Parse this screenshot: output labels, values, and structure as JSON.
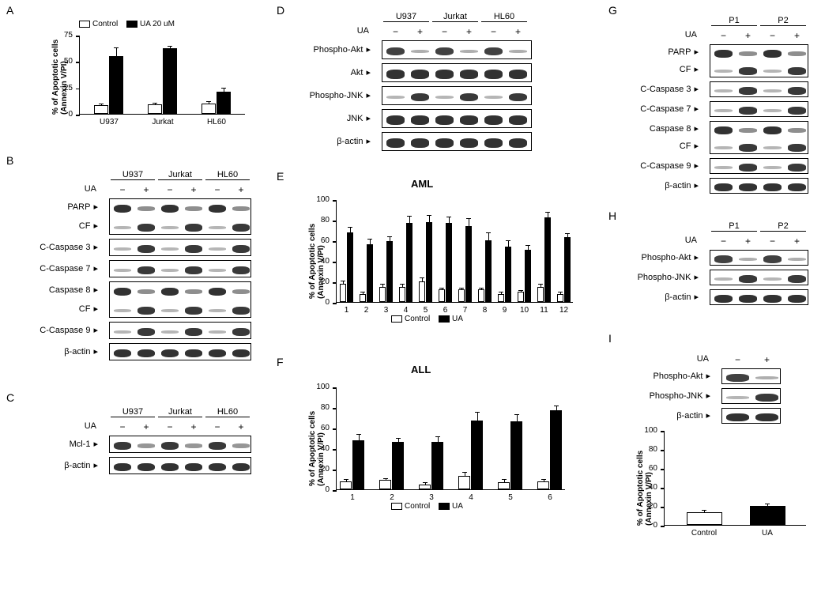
{
  "panels": {
    "A": "A",
    "B": "B",
    "C": "C",
    "D": "D",
    "E": "E",
    "F": "F",
    "G": "G",
    "H": "H",
    "I": "I"
  },
  "chartA": {
    "type": "bar",
    "categories": [
      "U937",
      "Jurkat",
      "HL60"
    ],
    "control_values": [
      8,
      9,
      10
    ],
    "ua_values": [
      55,
      62,
      21
    ],
    "ua_errors": [
      7,
      2,
      3
    ],
    "control_errors": [
      1,
      1,
      1
    ],
    "ylabel_line1": "% of Apoptotic cells",
    "ylabel_line2": "(Annexin V/PI)",
    "ylim": [
      0,
      75
    ],
    "ytick_step": 25,
    "legend": {
      "control": "Control",
      "ua": "UA  20 uM"
    },
    "bar_colors": {
      "control": "#ffffff",
      "ua": "#000000"
    }
  },
  "blotB": {
    "treatment": "UA",
    "columns": [
      "U937",
      "Jurkat",
      "HL60"
    ],
    "conditions": [
      "−",
      "+",
      "−",
      "+",
      "−",
      "+"
    ],
    "rows": [
      "PARP",
      "CF",
      "C-Caspase 3",
      "C-Caspase 7",
      "Caspase 8",
      "CF",
      "C-Caspase 9",
      "β-actin"
    ]
  },
  "blotC": {
    "treatment": "UA",
    "columns": [
      "U937",
      "Jurkat",
      "HL60"
    ],
    "conditions": [
      "−",
      "+",
      "−",
      "+",
      "−",
      "+"
    ],
    "rows": [
      "Mcl-1",
      "β-actin"
    ]
  },
  "blotD": {
    "treatment": "UA",
    "columns": [
      "U937",
      "Jurkat",
      "HL60"
    ],
    "conditions": [
      "−",
      "+",
      "−",
      "+",
      "−",
      "+"
    ],
    "rows": [
      "Phospho-Akt",
      "Akt",
      "Phospho-JNK",
      "JNK",
      "β-actin"
    ]
  },
  "chartE": {
    "type": "bar",
    "title": "AML",
    "categories": [
      "1",
      "2",
      "3",
      "4",
      "5",
      "6",
      "7",
      "8",
      "9",
      "10",
      "11",
      "12"
    ],
    "control_values": [
      18,
      8,
      15,
      15,
      20,
      12,
      12,
      12,
      8,
      10,
      15,
      8
    ],
    "ua_values": [
      68,
      56,
      59,
      77,
      78,
      77,
      74,
      60,
      54,
      51,
      82,
      63
    ],
    "ua_errors": [
      4,
      5,
      4,
      6,
      6,
      5,
      7,
      7,
      5,
      4,
      5,
      3
    ],
    "control_errors": [
      2,
      1,
      2,
      2,
      3,
      1,
      1,
      1,
      1,
      1,
      2,
      1
    ],
    "ylabel_line1": "% of Apoptotic cells",
    "ylabel_line2": "(Annexin V/PI)",
    "ylim": [
      0,
      100
    ],
    "ytick_step": 20,
    "legend": {
      "control": "Control",
      "ua": "UA"
    }
  },
  "chartF": {
    "type": "bar",
    "title": "ALL",
    "categories": [
      "1",
      "2",
      "3",
      "4",
      "5",
      "6"
    ],
    "control_values": [
      8,
      9,
      5,
      13,
      7,
      8
    ],
    "ua_values": [
      48,
      46,
      46,
      67,
      66,
      77
    ],
    "ua_errors": [
      5,
      3,
      5,
      8,
      6,
      4
    ],
    "control_errors": [
      1,
      1,
      1,
      3,
      2,
      1
    ],
    "ylabel_line1": "% of Apoptotic cells",
    "ylabel_line2": "(Annexin V/PI)",
    "ylim": [
      0,
      100
    ],
    "ytick_step": 20,
    "legend": {
      "control": "Control",
      "ua": "UA"
    }
  },
  "blotG": {
    "treatment": "UA",
    "columns": [
      "P1",
      "P2"
    ],
    "conditions": [
      "−",
      "+",
      "−",
      "+"
    ],
    "rows": [
      "PARP",
      "CF",
      "C-Caspase 3",
      "C-Caspase 7",
      "Caspase 8",
      "CF",
      "C-Caspase 9",
      "β-actin"
    ]
  },
  "blotH": {
    "treatment": "UA",
    "columns": [
      "P1",
      "P2"
    ],
    "conditions": [
      "−",
      "+",
      "−",
      "+"
    ],
    "rows": [
      "Phospho-Akt",
      "Phospho-JNK",
      "β-actin"
    ]
  },
  "blotI": {
    "treatment": "UA",
    "conditions": [
      "−",
      "+"
    ],
    "rows": [
      "Phospho-Akt",
      "Phospho-JNK",
      "β-actin"
    ]
  },
  "chartI": {
    "type": "bar",
    "categories": [
      "Control",
      "UA"
    ],
    "values": [
      13,
      20
    ],
    "errors": [
      2,
      2
    ],
    "colors": [
      "#ffffff",
      "#000000"
    ],
    "ylabel_line1": "% of Apoptotic cells",
    "ylabel_line2": "(Annexin V/PI)",
    "ylim": [
      0,
      100
    ],
    "ytick_step": 20
  }
}
